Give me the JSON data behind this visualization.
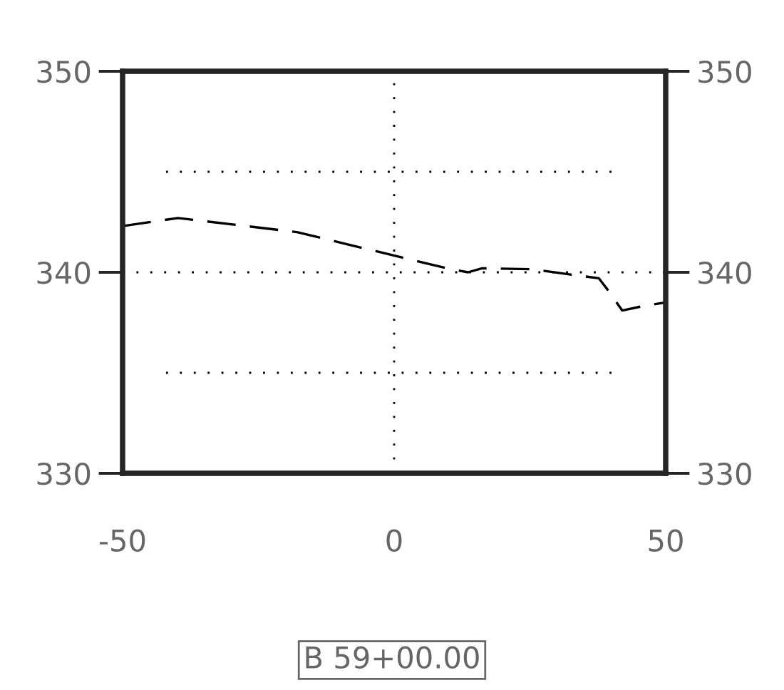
{
  "chart_data": {
    "type": "line",
    "line_style": "dashed",
    "marker": "none",
    "grid": true,
    "x": [
      -50,
      -39.8,
      -17.9,
      -8.7,
      9.7,
      13.6,
      16.2,
      25.4,
      37.7,
      39.4,
      42.0,
      45.5,
      49.9
    ],
    "series": [
      {
        "color": "#000000",
        "values": [
          342.3,
          342.7,
          342.0,
          341.4,
          340.2,
          340.0,
          340.2,
          340.15,
          339.7,
          339.1,
          338.1,
          338.3,
          338.5
        ]
      }
    ],
    "xlim": [
      -50,
      50
    ],
    "xticks": [
      -50,
      0,
      50
    ],
    "ylim": [
      330,
      350
    ],
    "yticks": [
      330,
      340,
      350
    ],
    "y2lim": [
      330,
      350
    ],
    "y2ticks": [
      330,
      340,
      350
    ],
    "ref_lines": [
      {
        "axis": "y",
        "value": 345,
        "line_style": "dotted"
      },
      {
        "axis": "y",
        "value": 335,
        "line_style": "dotted"
      }
    ],
    "annotations": [
      "B 59+00.00"
    ]
  }
}
